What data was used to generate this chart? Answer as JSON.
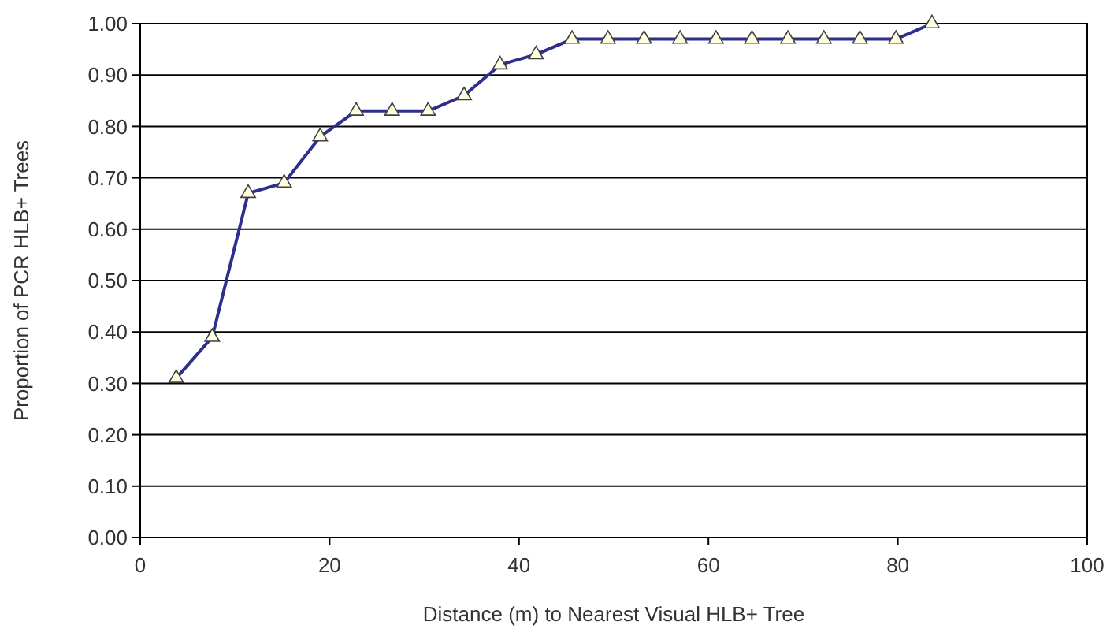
{
  "chart_data": {
    "type": "line",
    "xlabel": "Distance (m) to Nearest Visual HLB+ Tree",
    "ylabel": "Proportion of PCR HLB+ Trees",
    "x": [
      3.8,
      7.6,
      11.4,
      15.2,
      19,
      22.8,
      26.6,
      30.4,
      34.2,
      38,
      41.8,
      45.6,
      49.4,
      53.2,
      57,
      60.8,
      64.6,
      68.4,
      72.2,
      76,
      79.8,
      83.6
    ],
    "series": [
      {
        "color": "#2e2e8c",
        "values": [
          0.31,
          0.39,
          0.67,
          0.69,
          0.78,
          0.83,
          0.83,
          0.83,
          0.86,
          0.92,
          0.94,
          0.97,
          0.97,
          0.97,
          0.97,
          0.97,
          0.97,
          0.97,
          0.97,
          0.97,
          0.97,
          1.0
        ]
      }
    ],
    "xlim": [
      0,
      100
    ],
    "xticks": [
      0,
      20,
      40,
      60,
      80,
      100
    ],
    "ylim": [
      0,
      1
    ],
    "yticks": [
      {
        "value": 0,
        "label": "0.00"
      },
      {
        "value": 0.1,
        "label": "0.10"
      },
      {
        "value": 0.2,
        "label": "0.20"
      },
      {
        "value": 0.3,
        "label": "0.30"
      },
      {
        "value": 0.4,
        "label": "0.40"
      },
      {
        "value": 0.5,
        "label": "0.50"
      },
      {
        "value": 0.6,
        "label": "0.60"
      },
      {
        "value": 0.7,
        "label": "0.70"
      },
      {
        "value": 0.8,
        "label": "0.80"
      },
      {
        "value": 0.9,
        "label": "0.90"
      },
      {
        "value": 1,
        "label": "1.00"
      }
    ],
    "grid": "y",
    "marker": "triangle",
    "line_style": "solid"
  }
}
